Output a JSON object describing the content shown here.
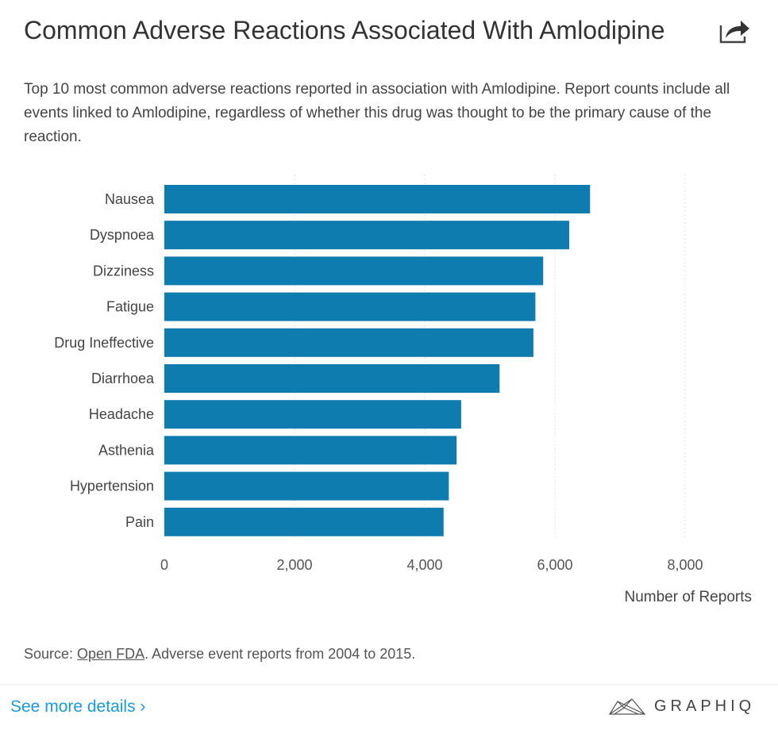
{
  "header": {
    "title": "Common Adverse Reactions Associated With Amlodipine",
    "share_icon": "share-icon"
  },
  "subtitle": "Top 10 most common adverse reactions reported in association with Amlodipine. Report counts include all events linked to Amlodipine, regardless of whether this drug was thought to be the primary cause of the reaction.",
  "chart_data": {
    "type": "bar",
    "orientation": "horizontal",
    "categories": [
      "Nausea",
      "Dyspnoea",
      "Dizziness",
      "Fatigue",
      "Drug Ineffective",
      "Diarrhoea",
      "Headache",
      "Asthenia",
      "Hypertension",
      "Pain"
    ],
    "values": [
      6540,
      6220,
      5820,
      5700,
      5670,
      5150,
      4560,
      4490,
      4370,
      4290
    ],
    "xlabel": "Number of Reports",
    "xlim": [
      0,
      9000
    ],
    "xticks": [
      0,
      2000,
      4000,
      6000,
      8000
    ],
    "xtick_labels": [
      "0",
      "2,000",
      "4,000",
      "6,000",
      "8,000"
    ],
    "grid": true,
    "bar_color": "#0f7cb0"
  },
  "footer": {
    "source_prefix": "Source: ",
    "source_link": "Open FDA",
    "source_suffix": ". Adverse event reports from 2004 to 2015.",
    "more_link": "See more details ›",
    "logo_text": "GRAPHIQ"
  }
}
